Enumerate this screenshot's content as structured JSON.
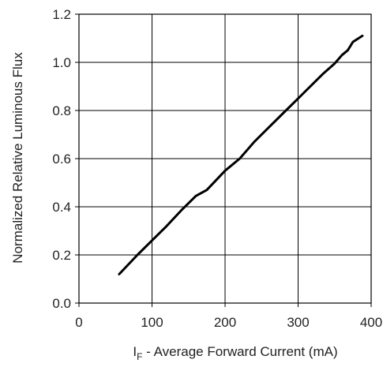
{
  "chart_data": {
    "type": "line",
    "xlabel": {
      "prefix": "I",
      "subscript": "F",
      "rest": " - Average Forward Current (mA)"
    },
    "ylabel": "Normalized Relative Luminous Flux",
    "xlim": [
      0,
      400
    ],
    "ylim": [
      0.0,
      1.2
    ],
    "x_ticks": [
      "0",
      "100",
      "200",
      "300",
      "400"
    ],
    "y_ticks": [
      "0.0",
      "0.2",
      "0.4",
      "0.6",
      "0.8",
      "1.0",
      "1.2"
    ],
    "grid": true,
    "series": [
      {
        "x": [
          55,
          80,
          100,
          120,
          140,
          160,
          175,
          200,
          220,
          240,
          260,
          280,
          300,
          320,
          335,
          350,
          360,
          368,
          375,
          388
        ],
        "y": [
          0.12,
          0.2,
          0.26,
          0.32,
          0.385,
          0.445,
          0.47,
          0.55,
          0.6,
          0.67,
          0.73,
          0.79,
          0.85,
          0.91,
          0.955,
          0.995,
          1.03,
          1.05,
          1.085,
          1.11
        ]
      }
    ]
  }
}
